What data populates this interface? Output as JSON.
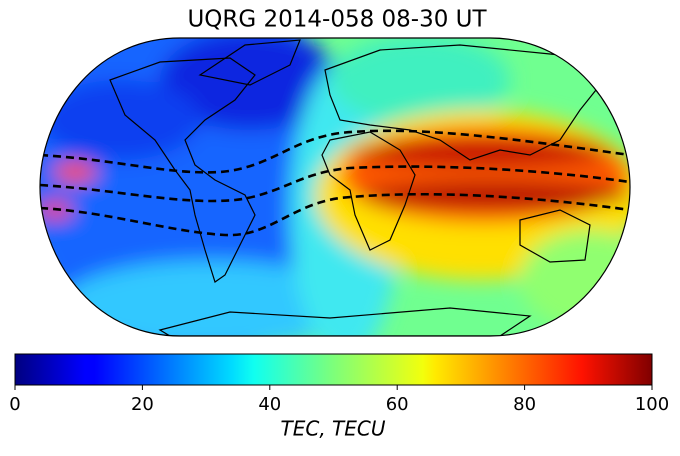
{
  "title": "UQRG 2014-058 08-30 UT",
  "colorbar": {
    "label": "TEC, TECU",
    "colormap": "jet",
    "lim": [
      0,
      100
    ],
    "ticks": [
      0,
      20,
      40,
      60,
      80,
      100
    ]
  }
}
